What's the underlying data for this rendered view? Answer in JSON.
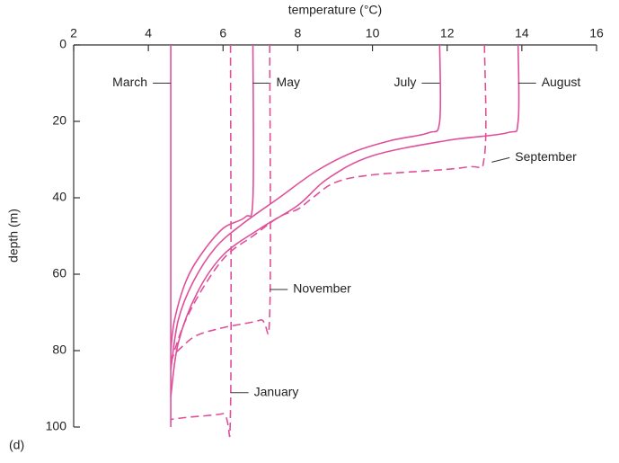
{
  "chart_data": {
    "type": "line",
    "x_label": "temperature (°C)",
    "y_label": "depth (m)",
    "annotation": "(d)",
    "xlim": [
      2,
      16
    ],
    "xticks": [
      2,
      4,
      6,
      8,
      10,
      12,
      14,
      16
    ],
    "ylim": [
      0,
      100
    ],
    "yticks": [
      0,
      20,
      40,
      60,
      80,
      100
    ],
    "y_inverted": true,
    "series": [
      {
        "name": "March",
        "color": "#e0509a",
        "dashed": false,
        "x": [
          4.6,
          4.6
        ],
        "y": [
          0,
          100
        ]
      },
      {
        "name": "May",
        "color": "#e0509a",
        "dashed": false,
        "x": [
          6.8,
          6.8,
          6.6,
          6.0,
          5.4,
          5.0,
          4.7,
          4.6
        ],
        "y": [
          0,
          40,
          45,
          48,
          55,
          62,
          72,
          80
        ]
      },
      {
        "name": "July",
        "color": "#e0509a",
        "dashed": false,
        "x": [
          11.8,
          11.8,
          11.5,
          10.5,
          9.5,
          8.5,
          7.5,
          6.5,
          5.8,
          5.2,
          4.8,
          4.6
        ],
        "y": [
          0,
          20,
          23,
          25,
          28,
          33,
          40,
          47,
          53,
          62,
          72,
          85
        ]
      },
      {
        "name": "August",
        "color": "#e0509a",
        "dashed": false,
        "x": [
          13.9,
          13.9,
          13.6,
          12.0,
          10.0,
          8.8,
          8.0,
          7.0,
          6.0,
          5.3,
          4.8,
          4.6
        ],
        "y": [
          0,
          20,
          23,
          25,
          29,
          35,
          42,
          48,
          55,
          65,
          78,
          92
        ]
      },
      {
        "name": "September",
        "color": "#e0509a",
        "dashed": true,
        "x": [
          13.0,
          13.0,
          12.5,
          10.0,
          9.0,
          8.4,
          8.0,
          7.5,
          6.8,
          6.1,
          5.5,
          5.0,
          4.7,
          4.6
        ],
        "y": [
          0,
          29,
          32,
          34,
          36,
          40,
          43,
          45,
          50,
          55,
          63,
          72,
          80,
          84
        ]
      },
      {
        "name": "November",
        "color": "#e0509a",
        "dashed": true,
        "x": [
          7.25,
          7.25,
          7.0,
          6.0,
          5.3,
          4.9,
          4.6
        ],
        "y": [
          0,
          70,
          72,
          74,
          76,
          79,
          82
        ]
      },
      {
        "name": "January",
        "color": "#e0509a",
        "dashed": true,
        "x": [
          6.2,
          6.2,
          6.0,
          5.0,
          4.6
        ],
        "y": [
          0,
          95,
          96.5,
          97.5,
          98
        ]
      }
    ]
  }
}
